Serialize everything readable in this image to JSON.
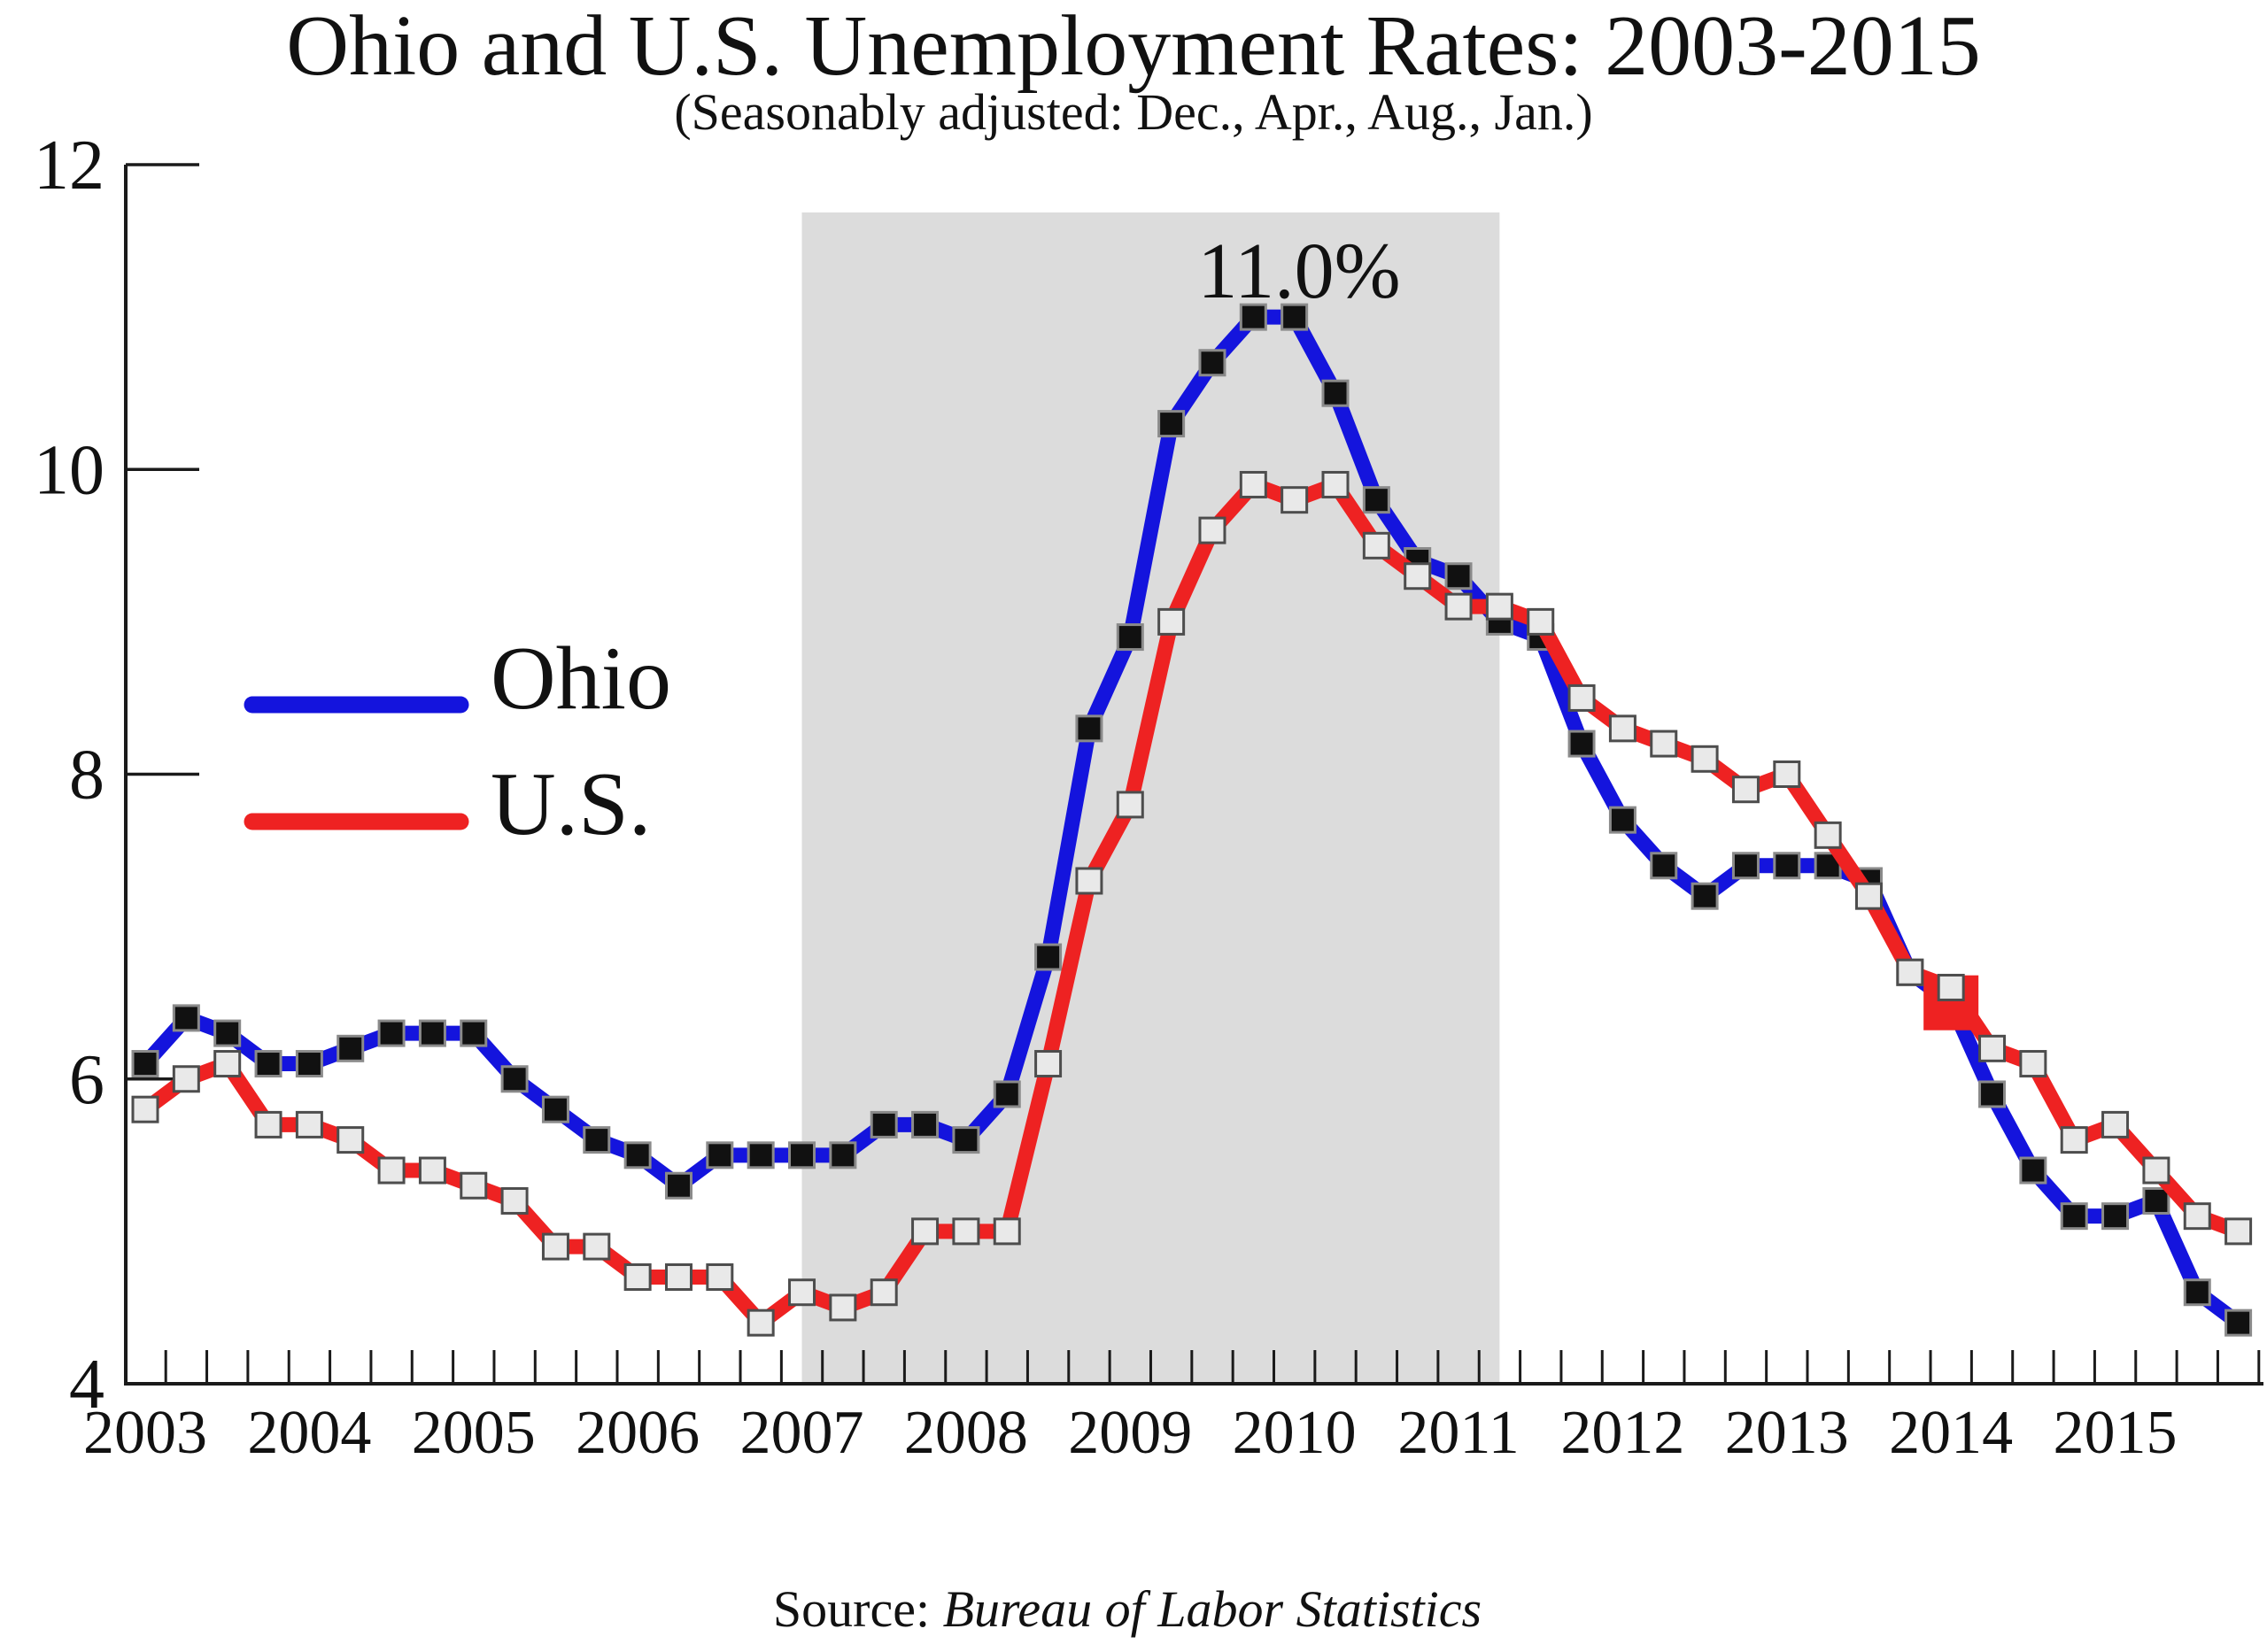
{
  "chart_data": {
    "type": "line",
    "title": "Ohio and U.S. Unemployment Rates: 2003-2015",
    "subtitle": "(Seasonably adjusted: Dec., Apr., Aug., Jan.)",
    "source_prefix": "Source:",
    "source_name": "Bureau of Labor Statistics",
    "x_axis": {
      "year_labels": [
        "2003",
        "2004",
        "2005",
        "2006",
        "2007",
        "2008",
        "2009",
        "2010",
        "2011",
        "2012",
        "2013",
        "2014",
        "2015"
      ],
      "x_start": 2003.0,
      "x_step": 0.25,
      "months_sampled": [
        "Jan.",
        "Apr.",
        "Aug.",
        "Dec."
      ]
    },
    "y_axis": {
      "tick_labels": [
        "4",
        "6",
        "8",
        "10",
        "12"
      ],
      "ticks": [
        4,
        6,
        8,
        10,
        12
      ],
      "min": 4,
      "max": 12,
      "unit": "percent"
    },
    "series": [
      {
        "name": "Ohio",
        "line_color": "#1414dd",
        "marker_fill": "#111111",
        "marker_stroke": "#8a8a8a",
        "values": [
          6.1,
          6.4,
          6.3,
          6.1,
          6.1,
          6.2,
          6.3,
          6.3,
          6.3,
          6.0,
          5.8,
          5.6,
          5.5,
          5.3,
          5.5,
          5.5,
          5.5,
          5.5,
          5.7,
          5.7,
          5.6,
          5.9,
          6.8,
          8.3,
          8.9,
          10.3,
          10.7,
          11.0,
          11.0,
          10.5,
          9.8,
          9.4,
          9.3,
          9.0,
          8.9,
          8.2,
          7.7,
          7.4,
          7.2,
          7.4,
          7.4,
          7.4,
          7.3,
          6.7,
          6.5,
          5.9,
          5.4,
          5.1,
          5.1,
          5.2,
          4.6,
          4.4
        ]
      },
      {
        "name": "U.S.",
        "line_color": "#ee2222",
        "marker_fill": "#e9e9e9",
        "marker_stroke": "#4d4d4d",
        "values": [
          5.8,
          6.0,
          6.1,
          5.7,
          5.7,
          5.6,
          5.4,
          5.4,
          5.3,
          5.2,
          4.9,
          4.9,
          4.7,
          4.7,
          4.7,
          4.4,
          4.6,
          4.5,
          4.6,
          5.0,
          5.0,
          5.0,
          6.1,
          7.3,
          7.8,
          9.0,
          9.6,
          9.9,
          9.8,
          9.9,
          9.5,
          9.3,
          9.1,
          9.1,
          9.0,
          8.5,
          8.3,
          8.2,
          8.1,
          7.9,
          8.0,
          7.6,
          7.2,
          6.7,
          6.6,
          6.2,
          6.1,
          5.6,
          5.7,
          5.4,
          5.1,
          5.0
        ]
      }
    ],
    "annotation": {
      "text": "11.0%",
      "series": "Ohio",
      "point_index": 27,
      "value": 11.0
    },
    "highlight_marker": {
      "color": "#ee2222",
      "point_index": 44,
      "value": 6.5,
      "series": "Ohio"
    },
    "shaded_band": {
      "x_from": 2007.0,
      "x_to": 2011.25,
      "color": "#dcdcdc"
    },
    "legend": {
      "items": [
        "Ohio",
        "U.S."
      ],
      "position": "upper-left"
    },
    "grid": "off"
  }
}
